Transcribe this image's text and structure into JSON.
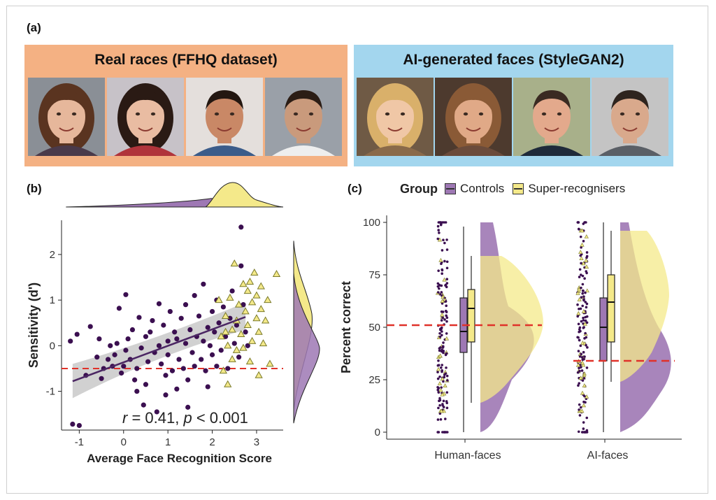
{
  "panels": {
    "a": "(a)",
    "b": "(b)",
    "c": "(c)"
  },
  "banners": {
    "real": {
      "title": "Real races (FFHQ dataset)",
      "color": "#f4b183",
      "faces": [
        "woman-face-1",
        "woman-face-2",
        "man-face-1",
        "man-face-2"
      ]
    },
    "ai": {
      "title": "AI-generated faces (StyleGAN2)",
      "color": "#a3d6ee",
      "faces": [
        "woman-face-3",
        "woman-face-4",
        "man-face-3",
        "man-face-4"
      ]
    }
  },
  "colors": {
    "controls": "#3b0f50",
    "controls_fill": "#9e78b4",
    "super": "#f4e98a",
    "super_edge": "#7a7a2a",
    "reference": "#e0322a",
    "overlap": "#c9a45a"
  },
  "legend": {
    "title": "Group",
    "items": [
      "Controls",
      "Super-recognisers"
    ]
  },
  "chart_data": [
    {
      "panel": "b",
      "type": "scatter",
      "xlabel": "Average Face Recognition Score",
      "ylabel": "Sensitivity (d')",
      "xlim": [
        -1.4,
        3.6
      ],
      "ylim": [
        -1.85,
        2.75
      ],
      "xticks": [
        "-1",
        "0",
        "1",
        "2",
        "3"
      ],
      "yticks": [
        "-1",
        "0",
        "1",
        "2"
      ],
      "annotation": "r = 0.41, p < 0.001",
      "annotation_parts": [
        "r",
        "= 0.41,",
        "p",
        "< 0.001"
      ],
      "reference_line_y": -0.5,
      "regression": {
        "x": [
          -1.15,
          2.75
        ],
        "y": [
          -0.78,
          0.63
        ]
      },
      "series": [
        {
          "name": "Controls",
          "marker": "circle",
          "points": [
            [
              -1.15,
              -1.72
            ],
            [
              -1.0,
              -1.75
            ],
            [
              -1.2,
              0.1
            ],
            [
              -1.05,
              0.25
            ],
            [
              -0.85,
              -0.65
            ],
            [
              -0.75,
              0.42
            ],
            [
              -0.6,
              -0.25
            ],
            [
              -0.55,
              0.15
            ],
            [
              -0.5,
              -0.72
            ],
            [
              -0.45,
              -0.5
            ],
            [
              -0.35,
              -0.3
            ],
            [
              -0.3,
              0.0
            ],
            [
              -0.2,
              -0.2
            ],
            [
              -0.15,
              0.05
            ],
            [
              -0.1,
              0.82
            ],
            [
              -0.05,
              -0.6
            ],
            [
              0.0,
              -0.45
            ],
            [
              0.05,
              -0.1
            ],
            [
              0.05,
              1.12
            ],
            [
              0.1,
              0.15
            ],
            [
              0.15,
              -0.3
            ],
            [
              0.2,
              0.35
            ],
            [
              0.25,
              -0.75
            ],
            [
              0.3,
              -0.5
            ],
            [
              0.35,
              0.62
            ],
            [
              0.4,
              -0.05
            ],
            [
              0.45,
              -1.3
            ],
            [
              0.5,
              0.2
            ],
            [
              0.5,
              -0.85
            ],
            [
              0.55,
              -0.35
            ],
            [
              0.6,
              0.3
            ],
            [
              0.65,
              0.55
            ],
            [
              0.7,
              -0.15
            ],
            [
              0.75,
              -1.45
            ],
            [
              0.8,
              0.0
            ],
            [
              0.8,
              0.92
            ],
            [
              0.85,
              -0.4
            ],
            [
              0.9,
              0.45
            ],
            [
              0.95,
              -1.08
            ],
            [
              0.95,
              -0.65
            ],
            [
              1.0,
              0.1
            ],
            [
              1.0,
              -0.2
            ],
            [
              1.05,
              0.75
            ],
            [
              1.1,
              -0.55
            ],
            [
              1.15,
              0.3
            ],
            [
              1.2,
              -0.95
            ],
            [
              1.2,
              0.15
            ],
            [
              1.25,
              -0.3
            ],
            [
              1.3,
              0.6
            ],
            [
              1.35,
              -0.5
            ],
            [
              1.4,
              0.05
            ],
            [
              1.4,
              0.9
            ],
            [
              1.45,
              -0.75
            ],
            [
              1.5,
              0.35
            ],
            [
              1.55,
              -0.15
            ],
            [
              1.6,
              1.1
            ],
            [
              1.6,
              -0.45
            ],
            [
              1.65,
              0.2
            ],
            [
              1.7,
              0.65
            ],
            [
              1.75,
              -0.3
            ],
            [
              1.8,
              0.1
            ],
            [
              1.8,
              1.35
            ],
            [
              1.85,
              -0.55
            ],
            [
              1.9,
              0.4
            ],
            [
              1.9,
              -0.9
            ],
            [
              1.95,
              0.0
            ],
            [
              2.0,
              0.75
            ],
            [
              2.0,
              -0.2
            ],
            [
              2.05,
              0.3
            ],
            [
              2.1,
              1.0
            ],
            [
              2.1,
              -0.45
            ],
            [
              2.15,
              0.5
            ],
            [
              2.2,
              -0.1
            ],
            [
              2.25,
              0.85
            ],
            [
              2.3,
              0.2
            ],
            [
              2.35,
              -0.5
            ],
            [
              2.4,
              0.6
            ],
            [
              2.45,
              1.2
            ],
            [
              2.5,
              0.05
            ],
            [
              2.55,
              0.45
            ],
            [
              2.6,
              -0.25
            ],
            [
              2.65,
              2.6
            ],
            [
              2.65,
              1.75
            ],
            [
              2.7,
              0.9
            ],
            [
              2.75,
              0.3
            ],
            [
              2.8,
              0.0
            ],
            [
              1.45,
              -1.35
            ],
            [
              0.3,
              -1.0
            ],
            [
              -0.25,
              -0.45
            ]
          ]
        },
        {
          "name": "Super-recognisers",
          "marker": "triangle",
          "points": [
            [
              2.15,
              1.0
            ],
            [
              2.2,
              0.2
            ],
            [
              2.25,
              -0.55
            ],
            [
              2.3,
              0.65
            ],
            [
              2.35,
              -0.85
            ],
            [
              2.35,
              0.0
            ],
            [
              2.4,
              1.05
            ],
            [
              2.45,
              0.35
            ],
            [
              2.45,
              -0.3
            ],
            [
              2.5,
              1.8
            ],
            [
              2.55,
              0.55
            ],
            [
              2.55,
              -0.1
            ],
            [
              2.6,
              0.9
            ],
            [
              2.65,
              0.25
            ],
            [
              2.7,
              1.35
            ],
            [
              2.7,
              -0.05
            ],
            [
              2.75,
              0.75
            ],
            [
              2.8,
              1.2
            ],
            [
              2.8,
              0.45
            ],
            [
              2.85,
              1.4
            ],
            [
              2.85,
              -0.35
            ],
            [
              2.9,
              0.95
            ],
            [
              2.9,
              0.1
            ],
            [
              2.95,
              1.6
            ],
            [
              3.0,
              0.6
            ],
            [
              3.0,
              1.1
            ],
            [
              3.05,
              0.3
            ],
            [
              3.05,
              -0.65
            ],
            [
              3.1,
              0.8
            ],
            [
              3.1,
              1.3
            ],
            [
              3.15,
              0.05
            ],
            [
              3.2,
              0.55
            ],
            [
              3.25,
              1.0
            ],
            [
              3.3,
              -0.4
            ],
            [
              3.45,
              1.57
            ],
            [
              2.3,
              0.3
            ]
          ]
        }
      ]
    },
    {
      "panel": "c",
      "type": "raincloud",
      "ylabel": "Percent correct",
      "ylim": [
        0,
        100
      ],
      "yticks": [
        "0",
        "25",
        "50",
        "75",
        "100"
      ],
      "categories": [
        "Human-faces",
        "AI-faces"
      ],
      "reference_lines": [
        51,
        34
      ],
      "boxes": {
        "Human-faces": {
          "Controls": {
            "whisker_low": 0,
            "q1": 38,
            "median": 48,
            "q3": 64,
            "whisker_high": 98
          },
          "Super-recognisers": {
            "whisker_low": 14,
            "q1": 43,
            "median": 59,
            "q3": 68,
            "whisker_high": 84
          }
        },
        "AI-faces": {
          "Controls": {
            "whisker_low": 0,
            "q1": 34,
            "median": 50,
            "q3": 64,
            "whisker_high": 100
          },
          "Super-recognisers": {
            "whisker_low": 24,
            "q1": 43,
            "median": 62,
            "q3": 75,
            "whisker_high": 96
          }
        }
      }
    }
  ]
}
